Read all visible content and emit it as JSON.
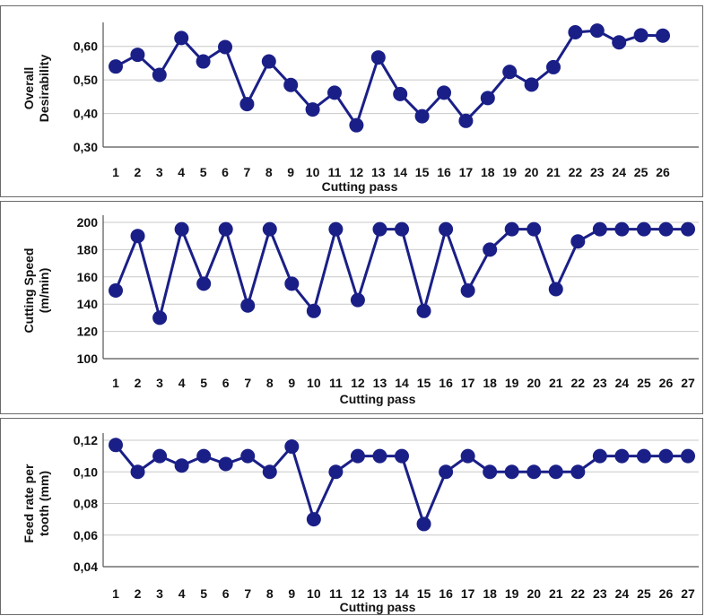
{
  "chart_data": [
    {
      "type": "line",
      "title": "",
      "xlabel": "Cutting pass",
      "ylabel_lines": [
        "Overall",
        "Desirability"
      ],
      "ylim": [
        0.3,
        0.65
      ],
      "yticks": [
        "0,30",
        "0,40",
        "0,50",
        "0,60"
      ],
      "ytick_values": [
        0.3,
        0.4,
        0.5,
        0.6
      ],
      "categories": [
        "1",
        "2",
        "3",
        "4",
        "5",
        "6",
        "7",
        "8",
        "9",
        "10",
        "11",
        "12",
        "13",
        "14",
        "15",
        "16",
        "17",
        "18",
        "19",
        "20",
        "21",
        "22",
        "23",
        "24",
        "25",
        "26"
      ],
      "values": [
        0.54,
        0.575,
        0.515,
        0.625,
        0.555,
        0.598,
        0.428,
        0.555,
        0.485,
        0.412,
        0.462,
        0.365,
        0.567,
        0.458,
        0.392,
        0.462,
        0.378,
        0.446,
        0.524,
        0.486,
        0.538,
        0.642,
        0.647,
        0.612,
        0.633,
        0.632
      ],
      "color": "#1a1f87",
      "grid": true
    },
    {
      "type": "line",
      "title": "",
      "xlabel": "Cutting pass",
      "ylabel_lines": [
        "Cutting Speed",
        "(m/min)"
      ],
      "ylim": [
        100,
        200
      ],
      "yticks": [
        "100",
        "120",
        "140",
        "160",
        "180",
        "200"
      ],
      "ytick_values": [
        100,
        120,
        140,
        160,
        180,
        200
      ],
      "categories": [
        "1",
        "2",
        "3",
        "4",
        "5",
        "6",
        "7",
        "8",
        "9",
        "10",
        "11",
        "12",
        "13",
        "14",
        "15",
        "16",
        "17",
        "18",
        "19",
        "20",
        "21",
        "22",
        "23",
        "24",
        "25",
        "26",
        "27"
      ],
      "values": [
        150,
        190,
        130,
        195,
        155,
        195,
        139,
        195,
        155,
        135,
        195,
        143,
        195,
        195,
        135,
        195,
        150,
        180,
        195,
        195,
        151,
        186,
        195,
        195,
        195,
        195,
        195
      ],
      "color": "#1a1f87",
      "grid": true
    },
    {
      "type": "line",
      "title": "",
      "xlabel": "Cutting pass",
      "ylabel_lines": [
        "Feed rate per",
        "tooth (mm)"
      ],
      "ylim": [
        0.04,
        0.12
      ],
      "yticks": [
        "0,04",
        "0,06",
        "0,08",
        "0,10",
        "0,12"
      ],
      "ytick_values": [
        0.04,
        0.06,
        0.08,
        0.1,
        0.12
      ],
      "categories": [
        "1",
        "2",
        "3",
        "4",
        "5",
        "6",
        "7",
        "8",
        "9",
        "10",
        "11",
        "12",
        "13",
        "14",
        "15",
        "16",
        "17",
        "18",
        "19",
        "20",
        "21",
        "22",
        "23",
        "24",
        "25",
        "26",
        "27"
      ],
      "values": [
        0.117,
        0.1,
        0.11,
        0.104,
        0.11,
        0.105,
        0.11,
        0.1,
        0.116,
        0.07,
        0.1,
        0.11,
        0.11,
        0.11,
        0.067,
        0.1,
        0.11,
        0.1,
        0.1,
        0.1,
        0.1,
        0.1,
        0.11,
        0.11,
        0.11,
        0.11,
        0.11
      ],
      "color": "#1a1f87",
      "grid": true
    }
  ]
}
